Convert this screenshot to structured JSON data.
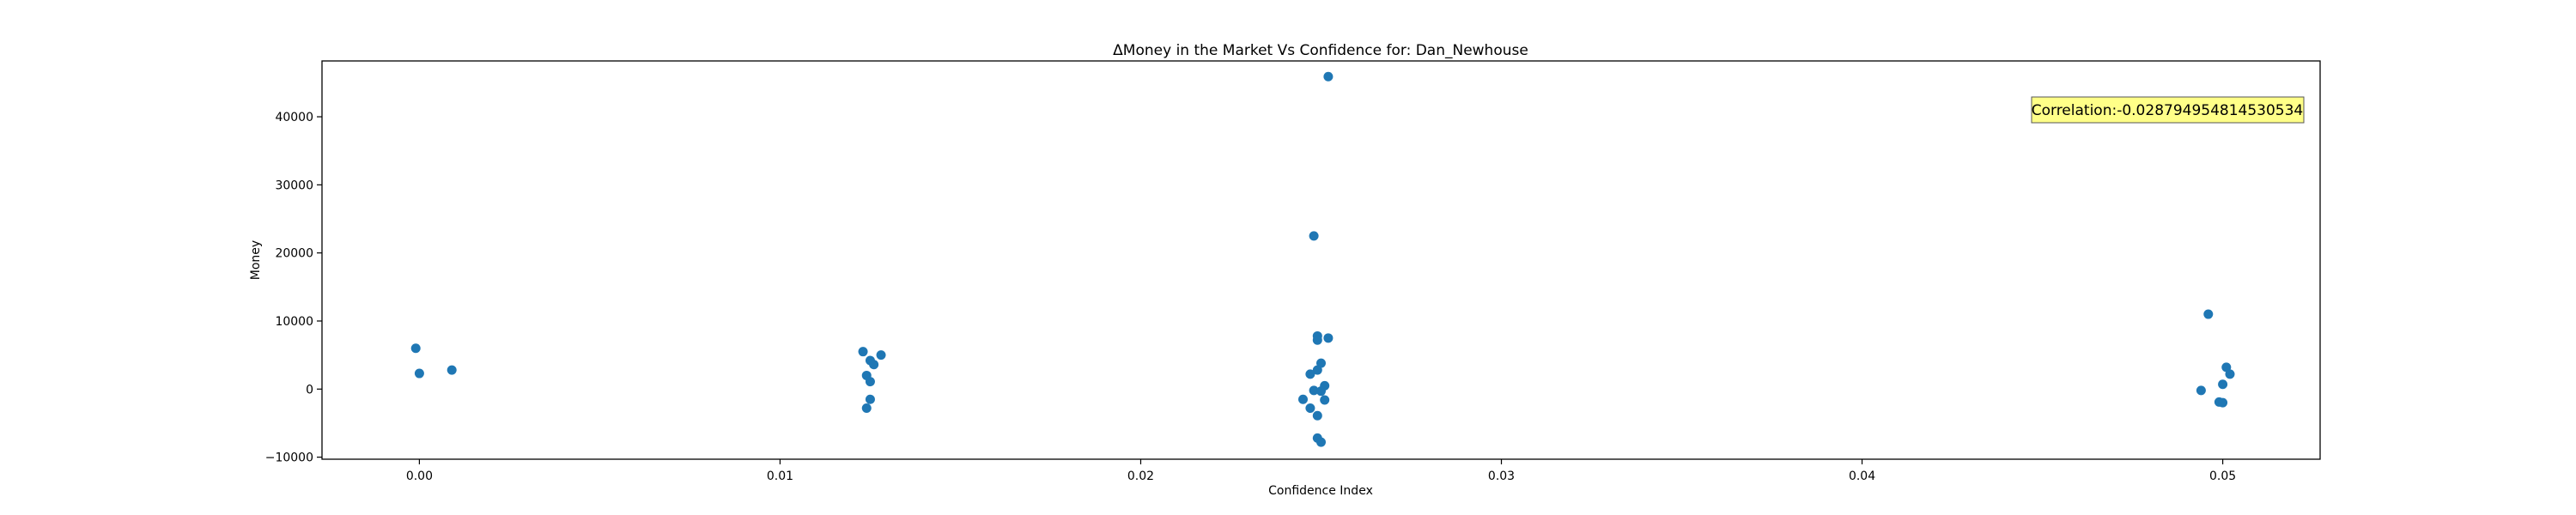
{
  "chart_data": {
    "type": "scatter",
    "title": "ΔMoney in the Market Vs Confidence for: Dan_Newhouse",
    "xlabel": "Confidence Index",
    "ylabel": "Money",
    "xlim": [
      -0.0027,
      0.0527
    ],
    "ylim": [
      -10300,
      48200
    ],
    "xticks": [
      0.0,
      0.01,
      0.02,
      0.03,
      0.04,
      0.05
    ],
    "xtick_labels": [
      "0.00",
      "0.01",
      "0.02",
      "0.03",
      "0.04",
      "0.05"
    ],
    "yticks": [
      -10000,
      0,
      10000,
      20000,
      30000,
      40000
    ],
    "ytick_labels": [
      "−10000",
      "0",
      "10000",
      "20000",
      "30000",
      "40000"
    ],
    "grid": false,
    "legend": "none",
    "annotation": "Correlation:-0.028794954814530534",
    "annotation_position": "top-right",
    "annotation_bg": "#ffff88",
    "marker_color": "#1f77b4",
    "points": [
      {
        "x": -0.0001,
        "y": 6000
      },
      {
        "x": 0.0,
        "y": 2300
      },
      {
        "x": 0.0009,
        "y": 2800
      },
      {
        "x": 0.0123,
        "y": 5500
      },
      {
        "x": 0.0128,
        "y": 5000
      },
      {
        "x": 0.0125,
        "y": 4200
      },
      {
        "x": 0.0126,
        "y": 3600
      },
      {
        "x": 0.0124,
        "y": 2000
      },
      {
        "x": 0.0125,
        "y": 1100
      },
      {
        "x": 0.0125,
        "y": -1500
      },
      {
        "x": 0.0124,
        "y": -2800
      },
      {
        "x": 0.0252,
        "y": 45900
      },
      {
        "x": 0.0248,
        "y": 22500
      },
      {
        "x": 0.0249,
        "y": 7800
      },
      {
        "x": 0.0249,
        "y": 7200
      },
      {
        "x": 0.0252,
        "y": 7500
      },
      {
        "x": 0.025,
        "y": 3800
      },
      {
        "x": 0.0249,
        "y": 2800
      },
      {
        "x": 0.0247,
        "y": 2200
      },
      {
        "x": 0.0251,
        "y": 500
      },
      {
        "x": 0.0248,
        "y": -200
      },
      {
        "x": 0.025,
        "y": -300
      },
      {
        "x": 0.0245,
        "y": -1500
      },
      {
        "x": 0.0251,
        "y": -1600
      },
      {
        "x": 0.0247,
        "y": -2800
      },
      {
        "x": 0.0249,
        "y": -3900
      },
      {
        "x": 0.0249,
        "y": -7200
      },
      {
        "x": 0.025,
        "y": -7800
      },
      {
        "x": 0.0496,
        "y": 11000
      },
      {
        "x": 0.0501,
        "y": 3200
      },
      {
        "x": 0.0502,
        "y": 2200
      },
      {
        "x": 0.05,
        "y": 700
      },
      {
        "x": 0.0494,
        "y": -200
      },
      {
        "x": 0.0499,
        "y": -1900
      },
      {
        "x": 0.05,
        "y": -2000
      }
    ]
  }
}
